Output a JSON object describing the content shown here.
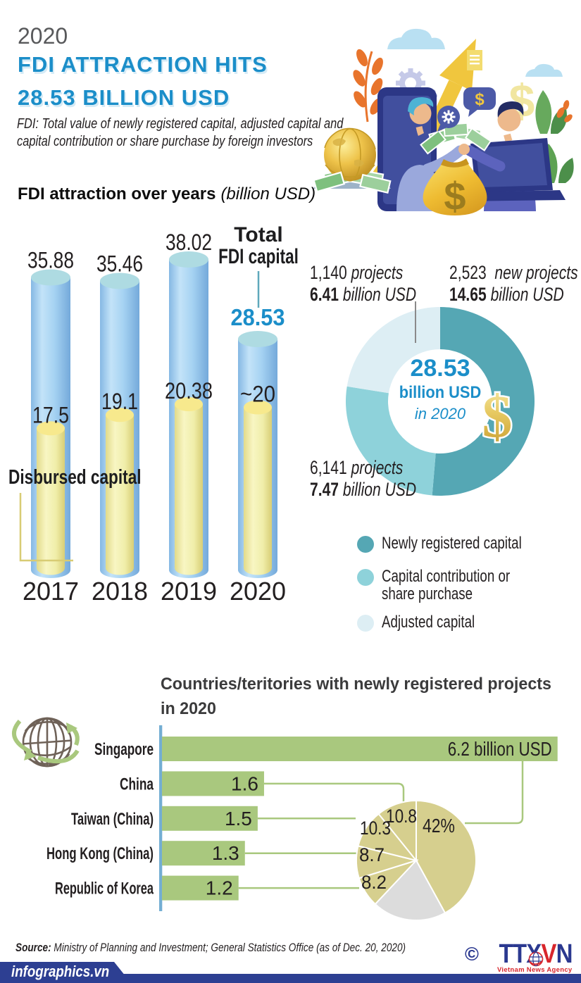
{
  "header": {
    "year": "2020",
    "title_line1": "FDI ATTRACTION HITS",
    "title_line2": "28.53 BILLION USD",
    "subtitle_line1": "FDI: Total value of newly registered capital, adjusted capital and",
    "subtitle_line2": "capital contribution or share purchase by foreign investors"
  },
  "overview": {
    "section_title": "FDI attraction over years",
    "section_unit": "(billion USD)",
    "total_capital_label_line1": "Total",
    "total_capital_label_line2": "FDI capital",
    "disbursed_label": "Disbursed capital"
  },
  "chart_data": [
    {
      "id": "fdi_over_years",
      "type": "bar",
      "title": "FDI attraction over years (billion USD)",
      "categories": [
        "2017",
        "2018",
        "2019",
        "2020"
      ],
      "series": [
        {
          "name": "Total FDI capital",
          "values": [
            35.88,
            35.46,
            38.02,
            28.53
          ],
          "labels": [
            "35.88",
            "35.46",
            "38.02",
            "28.53"
          ]
        },
        {
          "name": "Disbursed capital",
          "values": [
            17.5,
            19.1,
            20.38,
            20
          ],
          "labels": [
            "17.5",
            "19.1",
            "20.38",
            "~20"
          ]
        }
      ],
      "ylabel": "billion USD"
    },
    {
      "id": "fdi_structure_2020",
      "type": "pie",
      "title": "FDI structure in 2020",
      "center": {
        "value": "28.53",
        "unit": "billion USD",
        "period": "in 2020"
      },
      "segments": [
        {
          "label": "Newly registered capital",
          "value": 14.65,
          "color": "#55a7b4",
          "projects": "2,523",
          "projects_suffix": "new projects",
          "value_label": "14.65",
          "value_suffix": "billion USD"
        },
        {
          "label": "Capital contribution or share purchase",
          "value": 7.47,
          "color": "#8ed2da",
          "projects": "6,141",
          "projects_suffix": "projects",
          "value_label": "7.47",
          "value_suffix": "billion USD"
        },
        {
          "label": "Adjusted capital",
          "value": 6.41,
          "color": "#ddeef4",
          "projects": "1,140",
          "projects_suffix": "projects",
          "value_label": "6.41",
          "value_suffix": "billion USD"
        }
      ]
    },
    {
      "id": "countries_2020",
      "type": "bar",
      "title": "Countries/teritories with newly registered projects in 2020",
      "categories": [
        "Singapore",
        "China",
        "Taiwan (China)",
        "Hong Kong (China)",
        "Republic of Korea"
      ],
      "values": [
        6.2,
        1.6,
        1.5,
        1.3,
        1.2
      ],
      "value_labels": [
        "6.2 billion USD",
        "1.6",
        "1.5",
        "1.3",
        "1.2"
      ],
      "unit": "billion USD",
      "pie": {
        "slices": [
          {
            "label": "42%",
            "value": 42,
            "color": "#d6cf8e"
          },
          {
            "label": "",
            "value": 20,
            "color": "#dcdcdc"
          },
          {
            "label": "8.2",
            "value": 8.2,
            "color": "#d6cf8e"
          },
          {
            "label": "8.7",
            "value": 8.7,
            "color": "#d6cf8e"
          },
          {
            "label": "10.3",
            "value": 10.3,
            "color": "#d6cf8e"
          },
          {
            "label": "10.8",
            "value": 10.8,
            "color": "#d6cf8e"
          }
        ]
      }
    }
  ],
  "countries": {
    "title_line1": "Countries/teritories with newly registered projects",
    "title_line2": "in 2020"
  },
  "footer": {
    "source_label": "Source:",
    "source_text": " Ministry of Planning and Investment; General Statistics Office (as of Dec. 20, 2020)",
    "site": "infographics.vn",
    "copyright": "©",
    "logo_t1": "TTX",
    "logo_t2": "V",
    "logo_t3": "N",
    "logo_caption": "Vietnam News Agency"
  },
  "icons": {
    "dollar": "$"
  },
  "colors": {
    "title_blue": "#1b8ec9",
    "cylinder_blue": "#8fc3ec",
    "cylinder_top": "#aedbe2",
    "cylinder_yellow": "#f0eda6",
    "cylinder_yellow_top": "#f7e98d",
    "donut_dark": "#55a7b4",
    "donut_mid": "#8ed2da",
    "donut_light": "#ddeef4",
    "bar_green": "#a9c87e",
    "pie_khaki": "#d6cf8e",
    "pie_gray": "#dcdcdc",
    "axis_blue": "#74aed3",
    "footer_navy": "#2d3f92",
    "logo_blue": "#2b3990",
    "logo_red": "#d8262c"
  }
}
